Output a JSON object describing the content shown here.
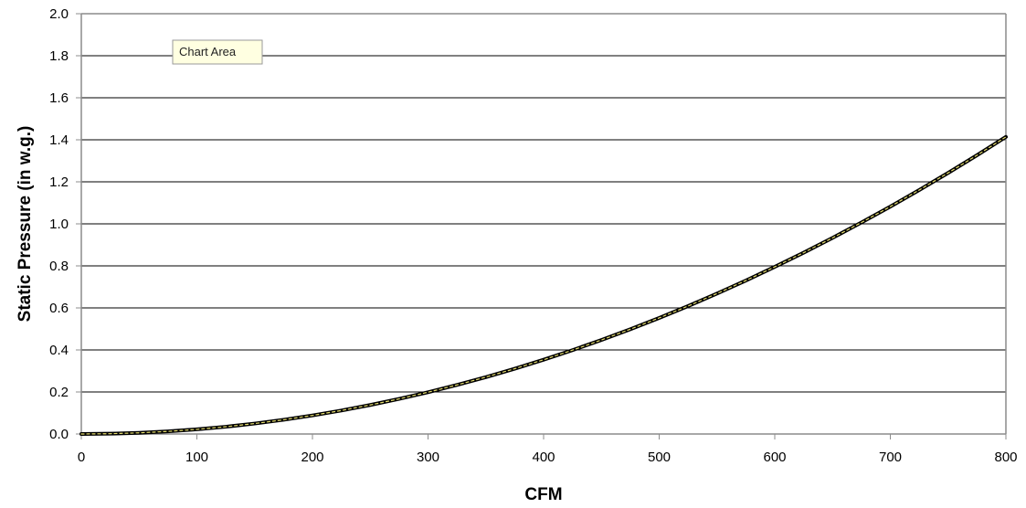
{
  "tooltip": {
    "text": "Chart Area"
  },
  "chart_data": {
    "type": "line",
    "title": "",
    "xlabel": "CFM",
    "ylabel": "Static Pressure (in w.g.)",
    "xlim": [
      0,
      800
    ],
    "ylim": [
      0,
      2.0
    ],
    "x_ticks": [
      "0",
      "100",
      "200",
      "300",
      "400",
      "500",
      "600",
      "700",
      "800"
    ],
    "y_ticks": [
      "0.0",
      "0.2",
      "0.4",
      "0.6",
      "0.8",
      "1.0",
      "1.2",
      "1.4",
      "1.6",
      "1.8",
      "2.0"
    ],
    "grid": "horizontal",
    "legend": "none",
    "series": [
      {
        "x": [
          0,
          25,
          50,
          75,
          100,
          125,
          150,
          175,
          200,
          225,
          250,
          275,
          300,
          325,
          350,
          375,
          400,
          425,
          450,
          475,
          500,
          525,
          550,
          575,
          600,
          625,
          650,
          675,
          700,
          725,
          750,
          775,
          800
        ],
        "values": [
          0,
          0.0014,
          0.0055,
          0.0124,
          0.0221,
          0.0345,
          0.0497,
          0.0676,
          0.0883,
          0.1118,
          0.138,
          0.167,
          0.1988,
          0.2333,
          0.2706,
          0.3106,
          0.3534,
          0.399,
          0.4473,
          0.4984,
          0.5522,
          0.6088,
          0.6682,
          0.7303,
          0.7952,
          0.8628,
          0.9332,
          1.0064,
          1.0823,
          1.161,
          1.2424,
          1.3266,
          1.4136
        ]
      }
    ],
    "colors": {
      "line": "#000000",
      "line_highlight": "#e8e070",
      "grid": "#000000",
      "frame": "#8c8c8c",
      "tooltip_bg": "#ffffe1",
      "tooltip_border": "#9a9a9a"
    }
  }
}
